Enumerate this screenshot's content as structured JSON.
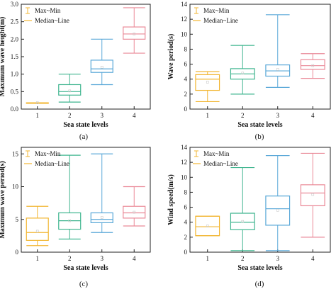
{
  "chart_data": [
    {
      "type": "boxplot",
      "panel": "(a)",
      "xlabel": "Sea state levels",
      "ylabel": "Maximum wave height(m)",
      "categories": [
        "1",
        "2",
        "3",
        "4"
      ],
      "ylim": [
        0,
        3
      ],
      "yticks": [
        "0.0",
        "0.5",
        "1.0",
        "1.5",
        "2.0",
        "2.5",
        "3.0"
      ],
      "legend": [
        "Max~Min",
        "Median~Line"
      ],
      "boxes": [
        {
          "min": 0.18,
          "q1": 0.18,
          "median": 0.18,
          "mean": 0.18,
          "q3": 0.18,
          "max": 0.18
        },
        {
          "min": 0.2,
          "q1": 0.4,
          "median": 0.5,
          "mean": 0.52,
          "q3": 0.7,
          "max": 1.0
        },
        {
          "min": 0.7,
          "q1": 1.05,
          "median": 1.15,
          "mean": 1.2,
          "q3": 1.4,
          "max": 2.0
        },
        {
          "min": 1.6,
          "q1": 2.0,
          "median": 2.15,
          "mean": 2.15,
          "q3": 2.35,
          "max": 2.9
        }
      ]
    },
    {
      "type": "boxplot",
      "panel": "(b)",
      "xlabel": "Sea state levels",
      "ylabel": "Wave period(s)",
      "categories": [
        "1",
        "2",
        "3",
        "4"
      ],
      "ylim": [
        0,
        14
      ],
      "yticks": [
        "0",
        "2",
        "4",
        "6",
        "8",
        "10",
        "12",
        "14"
      ],
      "legend": [
        "Max~Min",
        "Median~Line"
      ],
      "boxes": [
        {
          "min": 1.0,
          "q1": 2.5,
          "median": 4.0,
          "mean": 3.6,
          "q3": 4.6,
          "max": 5.0
        },
        {
          "min": 2.0,
          "q1": 4.0,
          "median": 4.7,
          "mean": 4.8,
          "q3": 5.4,
          "max": 8.5
        },
        {
          "min": 2.9,
          "q1": 4.4,
          "median": 5.1,
          "mean": 5.3,
          "q3": 5.9,
          "max": 12.6
        },
        {
          "min": 4.1,
          "q1": 5.3,
          "median": 5.8,
          "mean": 5.8,
          "q3": 6.6,
          "max": 7.4
        }
      ]
    },
    {
      "type": "boxplot",
      "panel": "(c)",
      "xlabel": "Sea state levels",
      "ylabel": "Maximum wave period(s)",
      "categories": [
        "1",
        "2",
        "3",
        "4"
      ],
      "ylim": [
        0,
        16
      ],
      "yticks": [
        "0",
        "5",
        "10",
        "15"
      ],
      "legend": [
        "Max~Min",
        "Median~Line"
      ],
      "boxes": [
        {
          "min": 1.0,
          "q1": 1.8,
          "median": 3.0,
          "mean": 3.2,
          "q3": 5.2,
          "max": 7.0
        },
        {
          "min": 2.0,
          "q1": 3.5,
          "median": 4.8,
          "mean": 4.8,
          "q3": 6.0,
          "max": 14.8
        },
        {
          "min": 3.0,
          "q1": 4.5,
          "median": 5.0,
          "mean": 5.3,
          "q3": 6.0,
          "max": 15.0
        },
        {
          "min": 4.0,
          "q1": 5.2,
          "median": 6.0,
          "mean": 6.1,
          "q3": 7.0,
          "max": 10.0
        }
      ]
    },
    {
      "type": "boxplot",
      "panel": "(d)",
      "xlabel": "Sea state levels",
      "ylabel": "Wind speed(m/s)",
      "categories": [
        "1",
        "2",
        "3",
        "4"
      ],
      "ylim": [
        0,
        14
      ],
      "yticks": [
        "0",
        "2",
        "4",
        "6",
        "8",
        "10",
        "12",
        "14"
      ],
      "legend": [
        "Max~Min",
        "Median~Line"
      ],
      "boxes": [
        {
          "min": 2.2,
          "q1": 2.2,
          "median": 3.4,
          "mean": 3.5,
          "q3": 4.8,
          "max": 4.8
        },
        {
          "min": 0.2,
          "q1": 3.0,
          "median": 4.0,
          "mean": 4.1,
          "q3": 5.2,
          "max": 11.3
        },
        {
          "min": 0.2,
          "q1": 3.6,
          "median": 5.8,
          "mean": 5.6,
          "q3": 7.5,
          "max": 12.9
        },
        {
          "min": 2.0,
          "q1": 6.2,
          "median": 7.9,
          "mean": 7.7,
          "q3": 9.0,
          "max": 13.2
        }
      ]
    }
  ],
  "colors": {
    "series": [
      "#f2b632",
      "#3fb58f",
      "#5aa8d8",
      "#ea8a98"
    ],
    "axis": "#222222",
    "mean_marker": "#c8c8c8"
  }
}
